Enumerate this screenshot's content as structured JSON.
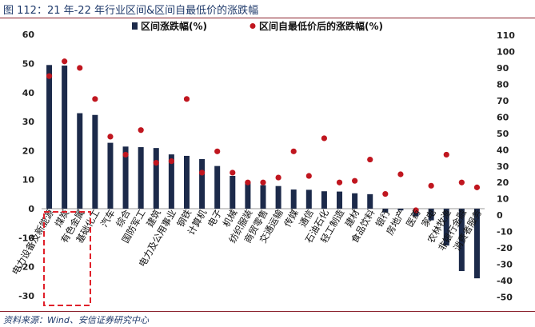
{
  "header": {
    "title": "图 112：21 年-22 年行业区间&区间自最低价的涨跌幅"
  },
  "footer": {
    "source": "资料来源：Wind、安信证券研究中心"
  },
  "colors": {
    "bar": "#1c2a4a",
    "dot": "#c0161f",
    "highlight_box": "#e0202a",
    "title": "#1f3a6b",
    "rule": "#8a1f2b"
  },
  "chart_data": {
    "type": "bar",
    "categories": [
      "电力设备及新能源",
      "煤炭",
      "有色金属",
      "基础化工",
      "汽车",
      "综合",
      "国防军工",
      "建筑",
      "电力及公用事业",
      "钢铁",
      "计算机",
      "电子",
      "机械",
      "纺织服装",
      "商贸零售",
      "交通运输",
      "传媒",
      "通信",
      "石油石化",
      "轻工制造",
      "建材",
      "食品饮料",
      "银行",
      "房地产",
      "医药",
      "家电",
      "农林牧渔",
      "非银行金融",
      "消费者服务"
    ],
    "series": [
      {
        "name": "区间涨跌幅(%)",
        "type": "bar",
        "axis": "left",
        "values": [
          49.5,
          49.3,
          32.9,
          32.3,
          22.7,
          21.4,
          21.2,
          20.9,
          18.7,
          18.2,
          17.1,
          14.7,
          11.3,
          9.3,
          8.1,
          7.8,
          6.6,
          6.5,
          6.0,
          5.9,
          5.3,
          5.0,
          -1.3,
          -0.6,
          -2.6,
          -4.0,
          -12.7,
          -21.5,
          -24.0
        ]
      },
      {
        "name": "区间自最低价后的涨跌幅(%)",
        "type": "scatter",
        "axis": "right",
        "values": [
          85,
          94,
          90,
          71,
          48,
          37,
          52,
          32,
          33,
          71,
          26,
          39,
          26,
          20,
          20,
          23,
          39,
          24,
          47,
          20,
          21,
          34,
          13,
          25,
          3,
          18,
          37,
          20,
          17
        ]
      }
    ],
    "y_left": {
      "min": -30,
      "max": 60,
      "step": 10
    },
    "y_right": {
      "min": -50,
      "max": 110,
      "step": 10
    },
    "legend_position": "top",
    "grid": false
  }
}
